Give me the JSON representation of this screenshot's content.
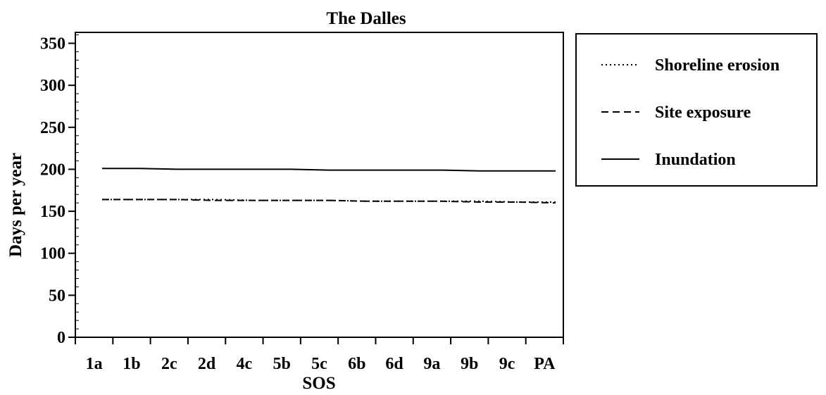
{
  "chart_data": {
    "type": "line",
    "title": "The Dalles",
    "xlabel": "SOS",
    "ylabel": "Days per year",
    "categories": [
      "1a",
      "1b",
      "2c",
      "2d",
      "4c",
      "5b",
      "5c",
      "6b",
      "6d",
      "9a",
      "9b",
      "9c",
      "PA"
    ],
    "ylim": [
      0,
      360
    ],
    "yticks": [
      0,
      50,
      100,
      150,
      200,
      250,
      300,
      350
    ],
    "grid": false,
    "legend_position": "right",
    "series": [
      {
        "name": "Shoreline erosion",
        "style": "dotted",
        "values": [
          164,
          164,
          164,
          164,
          163,
          163,
          163,
          162,
          162,
          162,
          162,
          161,
          161
        ]
      },
      {
        "name": "Site exposure",
        "style": "dashed",
        "values": [
          164,
          164,
          164,
          163,
          163,
          163,
          163,
          162,
          162,
          162,
          161,
          161,
          160
        ]
      },
      {
        "name": "Inundation",
        "style": "solid",
        "values": [
          201,
          201,
          200,
          200,
          200,
          200,
          199,
          199,
          199,
          199,
          198,
          198,
          198
        ]
      }
    ]
  }
}
